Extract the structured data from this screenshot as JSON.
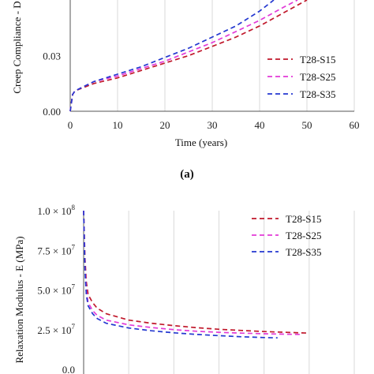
{
  "colors": {
    "S15": "#c0182b",
    "S25": "#e23ad8",
    "S35": "#2438d0",
    "grid": "#d9d9d9",
    "axis": "#555555"
  },
  "chart_data": [
    {
      "type": "line",
      "panel_label": "(a)",
      "title": "",
      "xlabel": "Time (years)",
      "ylabel": "Creep Compliance - D",
      "xlim": [
        0,
        60
      ],
      "ylim": [
        0,
        0.06
      ],
      "x_ticks": [
        "0",
        "10",
        "20",
        "30",
        "40",
        "50",
        "60"
      ],
      "y_ticks": [
        "0.00",
        "0.03"
      ],
      "grid": "vertical",
      "legend_position": "bottom-right",
      "series": [
        {
          "name": "T28-S15",
          "color_key": "S15",
          "x": [
            0,
            0.5,
            1,
            5,
            10,
            15,
            20,
            25,
            30,
            35,
            40,
            45,
            50
          ],
          "y": [
            0.0,
            0.009,
            0.011,
            0.015,
            0.018,
            0.022,
            0.026,
            0.03,
            0.035,
            0.04,
            0.046,
            0.053,
            0.06
          ]
        },
        {
          "name": "T28-S25",
          "color_key": "S25",
          "x": [
            0,
            0.5,
            1,
            5,
            10,
            15,
            20,
            25,
            30,
            35,
            40,
            45,
            48
          ],
          "y": [
            0.0,
            0.009,
            0.011,
            0.016,
            0.019,
            0.023,
            0.027,
            0.032,
            0.037,
            0.043,
            0.049,
            0.056,
            0.06
          ]
        },
        {
          "name": "T28-S35",
          "color_key": "S35",
          "x": [
            0,
            0.5,
            1,
            5,
            10,
            15,
            20,
            25,
            30,
            35,
            40,
            43
          ],
          "y": [
            0.0,
            0.009,
            0.011,
            0.016,
            0.02,
            0.024,
            0.029,
            0.034,
            0.04,
            0.046,
            0.054,
            0.06
          ]
        }
      ]
    },
    {
      "type": "line",
      "title": "",
      "xlabel": "",
      "ylabel": "Relaxation Modulus - E (MPa)",
      "xlim": [
        0,
        60
      ],
      "ylim": [
        0,
        100000000
      ],
      "y_ticks": [
        "0.0",
        "2.5 × 10",
        "5.0 × 10",
        "7.5 × 10",
        "1.0 × 10"
      ],
      "y_tick_exponents": [
        "",
        "7",
        "7",
        "7",
        "8"
      ],
      "grid": "vertical",
      "legend_position": "top-right",
      "series": [
        {
          "name": "T28-S15",
          "color_key": "S15",
          "x": [
            0,
            0.3,
            0.6,
            1,
            2,
            3,
            5,
            10,
            15,
            20,
            25,
            30,
            35,
            40,
            45,
            50
          ],
          "y": [
            100000000,
            70000000,
            55000000,
            47000000,
            42000000,
            38500000,
            35000000,
            31000000,
            29000000,
            27500000,
            26200000,
            25200000,
            24500000,
            23800000,
            23300000,
            22800000
          ]
        },
        {
          "name": "T28-S25",
          "color_key": "S25",
          "x": [
            0,
            0.3,
            0.6,
            1,
            2,
            3,
            5,
            10,
            15,
            20,
            25,
            30,
            35,
            40,
            45,
            48
          ],
          "y": [
            100000000,
            65000000,
            50000000,
            42000000,
            37000000,
            34000000,
            31000000,
            28000000,
            26300000,
            25000000,
            24000000,
            23300000,
            22800000,
            22400000,
            22100000,
            22000000
          ]
        },
        {
          "name": "T28-S35",
          "color_key": "S35",
          "x": [
            0,
            0.3,
            0.6,
            1,
            2,
            3,
            5,
            10,
            15,
            20,
            25,
            30,
            35,
            40,
            43
          ],
          "y": [
            100000000,
            62000000,
            47000000,
            40000000,
            35000000,
            32000000,
            29000000,
            26000000,
            24300000,
            23000000,
            22000000,
            21200000,
            20500000,
            20000000,
            19800000
          ]
        }
      ]
    }
  ]
}
